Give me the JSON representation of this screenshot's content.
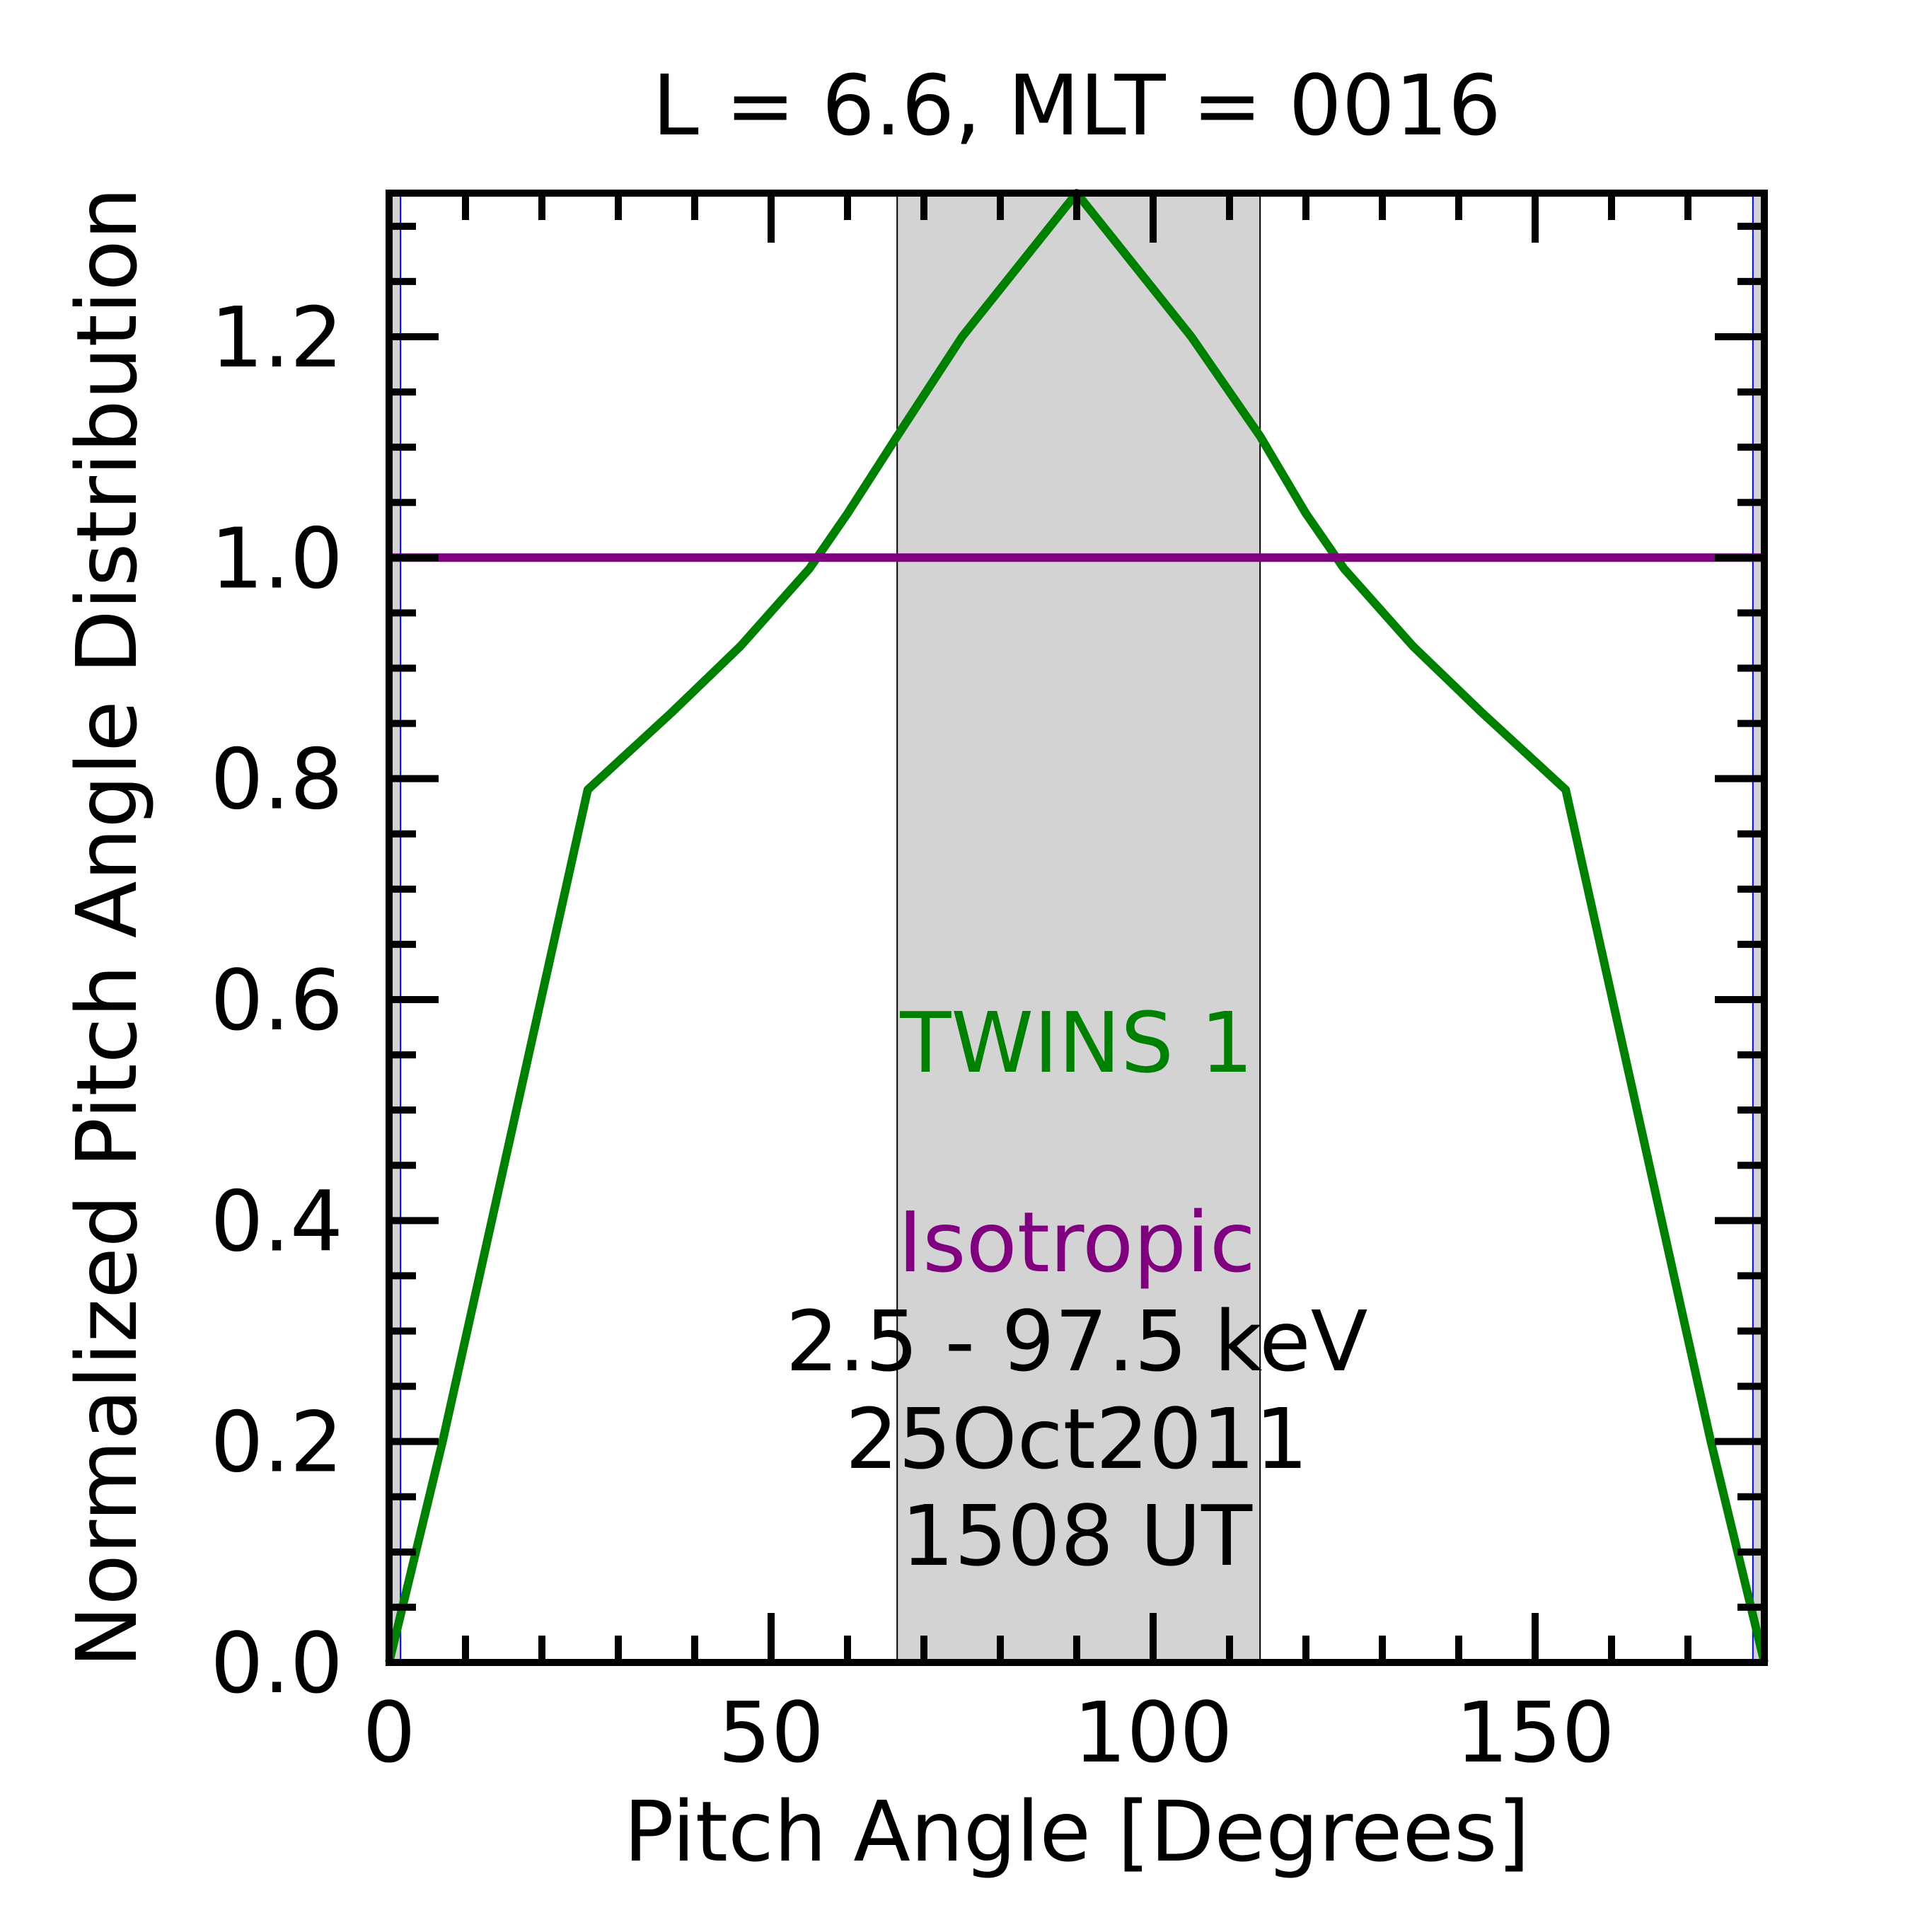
{
  "chart_data": {
    "type": "line",
    "title": "L =  6.6, MLT = 0016",
    "xlabel": "Pitch Angle [Degrees]",
    "ylabel": "Normalized Pitch Angle Distribution",
    "xlim": [
      0,
      180
    ],
    "ylim": [
      0,
      1.33
    ],
    "xticks": [
      0,
      50,
      100,
      150
    ],
    "xtick_labels": [
      "0",
      "50",
      "100",
      "150"
    ],
    "yticks": [
      0.0,
      0.2,
      0.4,
      0.6,
      0.8,
      1.0,
      1.2
    ],
    "ytick_labels": [
      "0.0",
      "0.2",
      "0.4",
      "0.6",
      "0.8",
      "1.0",
      "1.2"
    ],
    "grid": false,
    "shaded_regions": [
      {
        "x_start": 0,
        "x_end": 1.5,
        "color": "#d3d3d3"
      },
      {
        "x_start": 66.5,
        "x_end": 114,
        "color": "#d3d3d3"
      },
      {
        "x_start": 178.5,
        "x_end": 180,
        "color": "#d3d3d3"
      }
    ],
    "vertical_lines": [
      {
        "x": 1.5,
        "color": "#0000ff"
      },
      {
        "x": 66.5,
        "color": "#000000"
      },
      {
        "x": 114,
        "color": "#000000"
      },
      {
        "x": 178.5,
        "color": "#0000ff"
      }
    ],
    "series": [
      {
        "name": "TWINS 1",
        "color": "#008000",
        "x": [
          0,
          7,
          26,
          37,
          46,
          55,
          60,
          66.5,
          75,
          90,
          105,
          114,
          120,
          125,
          134,
          143,
          154,
          173,
          180
        ],
        "y": [
          0.0,
          0.2,
          0.79,
          0.86,
          0.92,
          0.99,
          1.04,
          1.11,
          1.2,
          1.33,
          1.2,
          1.11,
          1.04,
          0.99,
          0.92,
          0.86,
          0.79,
          0.2,
          0.0
        ]
      },
      {
        "name": "Isotropic",
        "color": "#800080",
        "x": [
          0,
          180
        ],
        "y": [
          1.0,
          1.0
        ]
      }
    ],
    "annotations": {
      "series1_label": "TWINS 1",
      "series2_label": "Isotropic",
      "energy": "2.5 - 97.5 keV",
      "date": "25Oct2011",
      "time": "1508 UT"
    }
  }
}
